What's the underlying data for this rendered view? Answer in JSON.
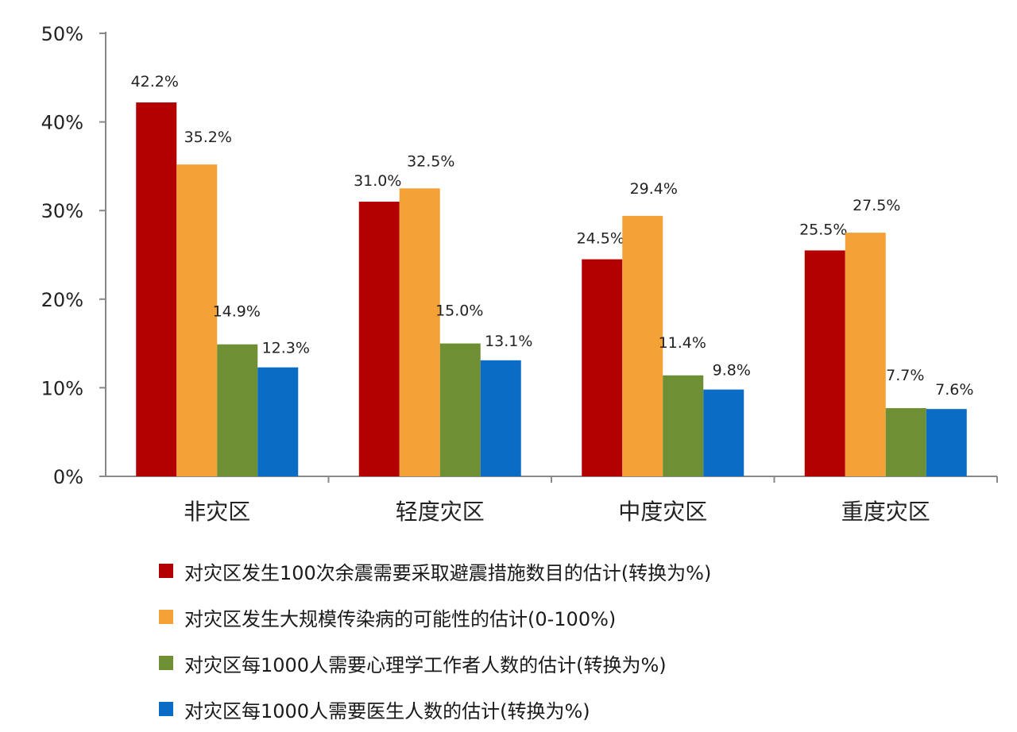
{
  "chart_data": {
    "type": "bar",
    "categories": [
      "非灾区",
      "轻度灾区",
      "中度灾区",
      "重度灾区"
    ],
    "series": [
      {
        "name": "对灾区发生100次余震需要采取避震措施数目的估计(转换为%)",
        "color": "#b30000",
        "values": [
          42.2,
          31.0,
          24.5,
          25.5
        ]
      },
      {
        "name": "对灾区发生大规模传染病的可能性的估计(0-100%)",
        "color": "#f4a235",
        "values": [
          35.2,
          32.5,
          29.4,
          27.5
        ]
      },
      {
        "name": "对灾区每1000人需要心理学工作者人数的估计(转换为%)",
        "color": "#6f8f35",
        "values": [
          14.9,
          15.0,
          11.4,
          7.7
        ]
      },
      {
        "name": "对灾区每1000人需要医生人数的估计(转换为%)",
        "color": "#0a6cc4",
        "values": [
          12.3,
          13.1,
          9.8,
          7.6
        ]
      }
    ],
    "data_labels": [
      [
        "42.2%",
        "31.0%",
        "24.5%",
        "25.5%"
      ],
      [
        "35.2%",
        "32.5%",
        "29.4%",
        "27.5%"
      ],
      [
        "14.9%",
        "15.0%",
        "11.4%",
        "7.7%"
      ],
      [
        "12.3%",
        "13.1%",
        "9.8%",
        "7.6%"
      ]
    ],
    "y_ticks": [
      "0%",
      "10%",
      "20%",
      "30%",
      "40%",
      "50%"
    ],
    "ylim": [
      0,
      50
    ],
    "legend_position": "bottom",
    "grid": false
  }
}
